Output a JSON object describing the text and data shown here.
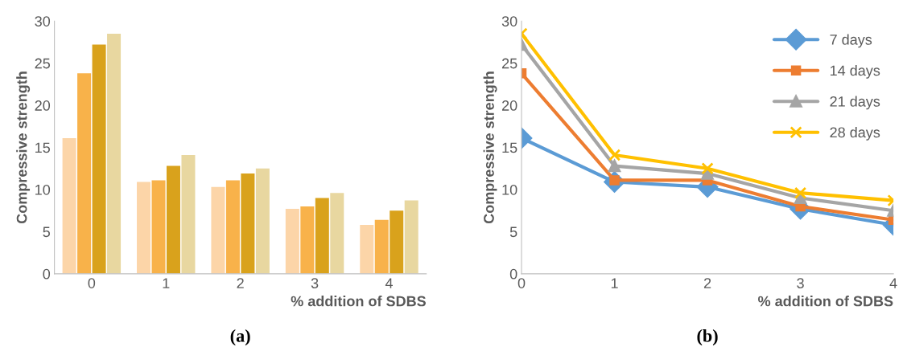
{
  "chart_data": [
    {
      "type": "bar",
      "xlabel": "% addition of SDBS",
      "ylabel": "Compressive strength",
      "categories": [
        "0",
        "1",
        "2",
        "3",
        "4"
      ],
      "ylim": [
        0,
        30
      ],
      "yticks": [
        0,
        5,
        10,
        15,
        20,
        25,
        30
      ],
      "grid": false,
      "legend": false,
      "annotations": [
        "(a)"
      ],
      "series": [
        {
          "color": "#fcd5a8",
          "values": [
            16.1,
            10.9,
            10.3,
            7.7,
            5.8
          ]
        },
        {
          "color": "#f8b24a",
          "values": [
            23.8,
            11.1,
            11.1,
            8.0,
            6.4
          ]
        },
        {
          "color": "#d9a21c",
          "values": [
            27.2,
            12.8,
            11.9,
            9.0,
            7.5
          ]
        },
        {
          "color": "#e8d7a0",
          "values": [
            28.5,
            14.1,
            12.5,
            9.6,
            8.7
          ]
        }
      ]
    },
    {
      "type": "line",
      "xlabel": "% addition of SDBS",
      "ylabel": "Compressive strength",
      "x": [
        0,
        1,
        2,
        3,
        4
      ],
      "xlim": [
        0,
        4
      ],
      "xticks": [
        0,
        1,
        2,
        3,
        4
      ],
      "ylim": [
        0,
        30
      ],
      "yticks": [
        0,
        5,
        10,
        15,
        20,
        25,
        30
      ],
      "grid": false,
      "legend": "top right",
      "annotations": [
        "(b)"
      ],
      "series": [
        {
          "name": "7 days",
          "color": "#5b9bd5",
          "marker": "diamond",
          "values": [
            16.1,
            10.9,
            10.3,
            7.7,
            5.8
          ]
        },
        {
          "name": "14 days",
          "color": "#ed7d31",
          "marker": "square",
          "values": [
            23.8,
            11.1,
            11.1,
            8.0,
            6.4
          ]
        },
        {
          "name": "21 days",
          "color": "#a5a5a5",
          "marker": "triangle",
          "values": [
            27.2,
            12.8,
            11.9,
            9.0,
            7.5
          ]
        },
        {
          "name": "28 days",
          "color": "#ffc000",
          "marker": "cross",
          "values": [
            28.5,
            14.1,
            12.5,
            9.6,
            8.7
          ]
        }
      ]
    }
  ]
}
